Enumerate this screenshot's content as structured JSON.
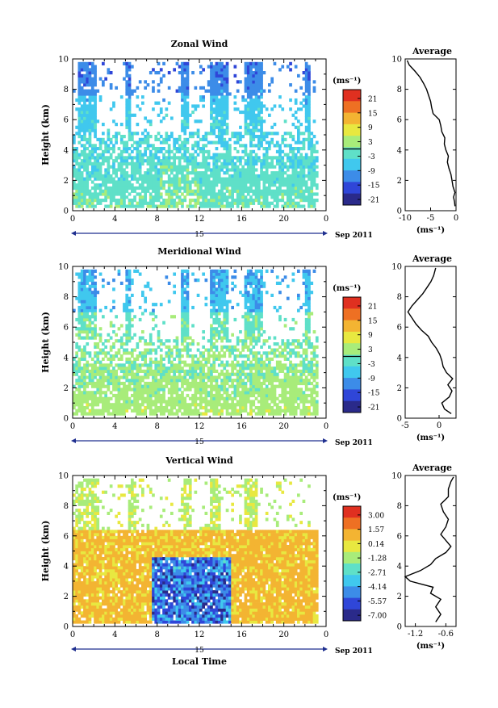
{
  "chart_data": [
    {
      "type": "heatmap",
      "title": "Zonal Wind",
      "ylabel": "Height (km)",
      "xlim": [
        0,
        24
      ],
      "ylim": [
        0,
        10
      ],
      "x_ticks": [
        "0",
        "4",
        "8",
        "12",
        "16",
        "20",
        "0"
      ],
      "y_ticks": [
        "0",
        "2",
        "4",
        "6",
        "8",
        "10"
      ],
      "day_label": "15",
      "date_label": "Sep 2011",
      "colorbar": {
        "unit": "(ms⁻¹)",
        "ticks": [
          "21",
          "15",
          "9",
          "3",
          "-3",
          "-9",
          "-15",
          "-21"
        ],
        "range": [
          -24,
          24
        ]
      },
      "average": {
        "title": "Average",
        "xlabel": "(ms⁻¹)",
        "x_ticks": [
          "-10",
          "-5",
          "0"
        ],
        "xlim": [
          -10,
          0
        ],
        "profile": [
          [
            -0.2,
            0.3
          ],
          [
            -0.3,
            0.6
          ],
          [
            -0.5,
            0.9
          ],
          [
            -0.2,
            1.2
          ],
          [
            -0.6,
            1.6
          ],
          [
            -0.8,
            2.0
          ],
          [
            -1.0,
            2.4
          ],
          [
            -1.4,
            2.8
          ],
          [
            -1.7,
            3.2
          ],
          [
            -1.5,
            3.6
          ],
          [
            -2.0,
            4.0
          ],
          [
            -2.3,
            4.4
          ],
          [
            -2.2,
            4.8
          ],
          [
            -2.8,
            5.2
          ],
          [
            -3.0,
            5.6
          ],
          [
            -3.3,
            6.0
          ],
          [
            -4.5,
            6.4
          ],
          [
            -4.8,
            6.8
          ],
          [
            -5.0,
            7.2
          ],
          [
            -5.4,
            7.6
          ],
          [
            -5.8,
            8.0
          ],
          [
            -6.4,
            8.4
          ],
          [
            -7.1,
            8.8
          ],
          [
            -8.1,
            9.2
          ],
          [
            -9.2,
            9.6
          ],
          [
            -9.6,
            9.9
          ]
        ]
      }
    },
    {
      "type": "heatmap",
      "title": "Meridional Wind",
      "ylabel": "Height (km)",
      "xlim": [
        0,
        24
      ],
      "ylim": [
        0,
        10
      ],
      "x_ticks": [
        "0",
        "4",
        "8",
        "12",
        "16",
        "20",
        "0"
      ],
      "y_ticks": [
        "0",
        "2",
        "4",
        "6",
        "8",
        "10"
      ],
      "day_label": "15",
      "date_label": "Sep 2011",
      "colorbar": {
        "unit": "(ms⁻¹)",
        "ticks": [
          "21",
          "15",
          "9",
          "3",
          "-3",
          "-9",
          "-15",
          "-21"
        ],
        "range": [
          -24,
          24
        ]
      },
      "average": {
        "title": "Average",
        "xlabel": "(ms⁻¹)",
        "x_ticks": [
          "-5",
          "0"
        ],
        "xlim": [
          -5,
          2.5
        ],
        "profile": [
          [
            1.8,
            0.3
          ],
          [
            0.8,
            0.6
          ],
          [
            0.4,
            1.0
          ],
          [
            1.5,
            1.4
          ],
          [
            1.9,
            1.8
          ],
          [
            1.3,
            2.2
          ],
          [
            2.0,
            2.6
          ],
          [
            1.1,
            3.0
          ],
          [
            0.6,
            3.4
          ],
          [
            0.4,
            3.8
          ],
          [
            0.1,
            4.2
          ],
          [
            -0.4,
            4.6
          ],
          [
            -1.1,
            5.0
          ],
          [
            -1.6,
            5.4
          ],
          [
            -2.6,
            5.8
          ],
          [
            -3.4,
            6.2
          ],
          [
            -4.0,
            6.6
          ],
          [
            -4.6,
            7.0
          ],
          [
            -4.0,
            7.4
          ],
          [
            -3.2,
            7.8
          ],
          [
            -2.4,
            8.2
          ],
          [
            -1.8,
            8.6
          ],
          [
            -1.2,
            9.0
          ],
          [
            -0.8,
            9.4
          ],
          [
            -0.5,
            9.9
          ]
        ]
      }
    },
    {
      "type": "heatmap",
      "title": "Vertical Wind",
      "ylabel": "Height (km)",
      "xlabel": "Local Time",
      "xlim": [
        0,
        24
      ],
      "ylim": [
        0,
        10
      ],
      "x_ticks": [
        "0",
        "4",
        "8",
        "12",
        "16",
        "20",
        "0"
      ],
      "y_ticks": [
        "0",
        "2",
        "4",
        "6",
        "8",
        "10"
      ],
      "day_label": "15",
      "date_label": "Sep 2011",
      "colorbar": {
        "unit": "(ms⁻¹)",
        "ticks": [
          "3.00",
          "1.57",
          "0.14",
          "-1.28",
          "-2.71",
          "-4.14",
          "-5.57",
          "-7.00"
        ],
        "range": [
          -7.7,
          3.7
        ]
      },
      "average": {
        "title": "Average",
        "xlabel": "(ms⁻¹)",
        "x_ticks": [
          "-1.2",
          "-0.6"
        ],
        "xlim": [
          -1.4,
          -0.4
        ],
        "profile": [
          [
            -0.8,
            0.3
          ],
          [
            -0.7,
            0.8
          ],
          [
            -0.8,
            1.3
          ],
          [
            -0.7,
            1.8
          ],
          [
            -0.9,
            2.2
          ],
          [
            -0.85,
            2.6
          ],
          [
            -1.3,
            3.0
          ],
          [
            -1.4,
            3.3
          ],
          [
            -1.1,
            3.7
          ],
          [
            -0.9,
            4.1
          ],
          [
            -0.8,
            4.5
          ],
          [
            -0.6,
            4.9
          ],
          [
            -0.5,
            5.3
          ],
          [
            -0.6,
            5.7
          ],
          [
            -0.7,
            6.1
          ],
          [
            -0.6,
            6.6
          ],
          [
            -0.55,
            7.1
          ],
          [
            -0.65,
            7.6
          ],
          [
            -0.7,
            8.1
          ],
          [
            -0.55,
            8.6
          ],
          [
            -0.55,
            9.1
          ],
          [
            -0.5,
            9.6
          ],
          [
            -0.45,
            9.9
          ]
        ]
      }
    }
  ]
}
